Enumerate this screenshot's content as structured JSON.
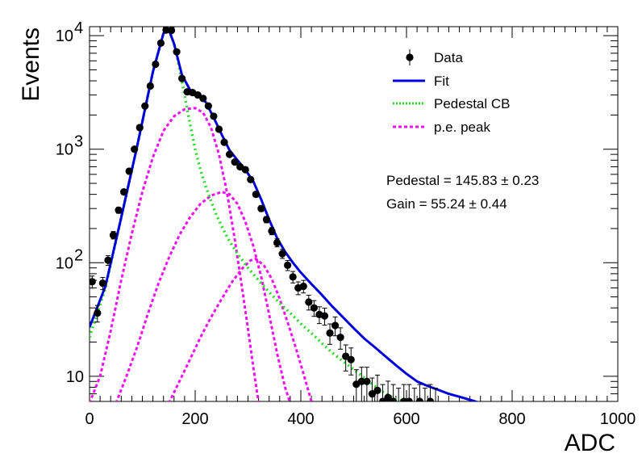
{
  "chart_data": {
    "type": "scatter",
    "xlabel": "ADC",
    "ylabel": "Events",
    "xlim": [
      0,
      1000
    ],
    "ylim": [
      6,
      12000
    ],
    "yscale": "log",
    "grid": false,
    "legend_position": "top-right",
    "x_ticks": [
      "0",
      "200",
      "400",
      "600",
      "800",
      "1000"
    ],
    "y_ticks": [
      {
        "value": 10,
        "label": "10"
      },
      {
        "value": 100,
        "base": "10",
        "exp": "2"
      },
      {
        "value": 1000,
        "base": "10",
        "exp": "3"
      },
      {
        "value": 10000,
        "base": "10",
        "exp": "4"
      }
    ],
    "legend": [
      {
        "label": "Data",
        "style": "marker"
      },
      {
        "label": "Fit",
        "style": "solid",
        "color": "#0000dd"
      },
      {
        "label": "Pedestal CB",
        "style": "dotted",
        "color": "#22dd22"
      },
      {
        "label": "p.e. peak",
        "style": "dashed",
        "color": "#ee11ee"
      }
    ],
    "annotations": [
      {
        "prefix": "Pedestal = 145.83",
        "pm": "±",
        "value": "0.23"
      },
      {
        "prefix": "Gain = 55.24",
        "pm": "±",
        "value": "0.44"
      }
    ],
    "data_series": {
      "name": "Data",
      "points": [
        [
          5,
          68
        ],
        [
          15,
          36
        ],
        [
          25,
          66
        ],
        [
          35,
          105
        ],
        [
          45,
          175
        ],
        [
          55,
          290
        ],
        [
          65,
          420
        ],
        [
          75,
          640
        ],
        [
          85,
          1000
        ],
        [
          95,
          1550
        ],
        [
          105,
          2400
        ],
        [
          115,
          3600
        ],
        [
          125,
          5600
        ],
        [
          135,
          8600
        ],
        [
          145,
          11200
        ],
        [
          155,
          11100
        ],
        [
          165,
          7200
        ],
        [
          175,
          4200
        ],
        [
          185,
          3200
        ],
        [
          195,
          3150
        ],
        [
          205,
          3000
        ],
        [
          215,
          2800
        ],
        [
          225,
          2400
        ],
        [
          235,
          1950
        ],
        [
          245,
          1500
        ],
        [
          255,
          1150
        ],
        [
          265,
          900
        ],
        [
          275,
          770
        ],
        [
          285,
          700
        ],
        [
          295,
          660
        ],
        [
          305,
          540
        ],
        [
          315,
          400
        ],
        [
          325,
          300
        ],
        [
          335,
          240
        ],
        [
          345,
          190
        ],
        [
          355,
          150
        ],
        [
          365,
          120
        ],
        [
          375,
          95
        ],
        [
          385,
          75
        ],
        [
          395,
          60
        ],
        [
          405,
          62
        ],
        [
          415,
          45
        ],
        [
          425,
          40
        ],
        [
          435,
          35
        ],
        [
          445,
          34
        ],
        [
          455,
          24
        ],
        [
          465,
          28
        ],
        [
          475,
          22
        ],
        [
          485,
          15
        ],
        [
          495,
          14
        ],
        [
          505,
          8.5
        ],
        [
          515,
          9
        ],
        [
          525,
          9
        ],
        [
          535,
          7
        ],
        [
          545,
          7.5
        ],
        [
          555,
          6
        ],
        [
          565,
          6.5
        ],
        [
          575,
          6
        ],
        [
          585,
          5.5
        ],
        [
          595,
          6
        ],
        [
          605,
          6
        ],
        [
          615,
          5.5
        ],
        [
          625,
          6
        ],
        [
          635,
          5.5
        ],
        [
          645,
          6
        ],
        [
          655,
          5.5
        ]
      ]
    },
    "fit_series": {
      "name": "Fit",
      "points": [
        [
          0,
          27
        ],
        [
          30,
          62
        ],
        [
          60,
          250
        ],
        [
          90,
          1050
        ],
        [
          120,
          4800
        ],
        [
          140,
          10500
        ],
        [
          150,
          11300
        ],
        [
          160,
          8500
        ],
        [
          175,
          4500
        ],
        [
          190,
          3350
        ],
        [
          205,
          3050
        ],
        [
          220,
          2600
        ],
        [
          235,
          1900
        ],
        [
          250,
          1350
        ],
        [
          265,
          980
        ],
        [
          280,
          800
        ],
        [
          295,
          660
        ],
        [
          310,
          520
        ],
        [
          325,
          360
        ],
        [
          340,
          240
        ],
        [
          355,
          165
        ],
        [
          370,
          125
        ],
        [
          385,
          100
        ],
        [
          400,
          82
        ],
        [
          420,
          65
        ],
        [
          440,
          52
        ],
        [
          460,
          41
        ],
        [
          480,
          33
        ],
        [
          500,
          26.5
        ],
        [
          520,
          21.5
        ],
        [
          540,
          18
        ],
        [
          560,
          15
        ],
        [
          580,
          12.5
        ],
        [
          600,
          10.5
        ],
        [
          620,
          9
        ],
        [
          640,
          8.2
        ],
        [
          660,
          7.6
        ],
        [
          680,
          7
        ],
        [
          700,
          6.6
        ],
        [
          720,
          6.2
        ],
        [
          740,
          5.8
        ],
        [
          750,
          5.6
        ]
      ]
    },
    "pedestal_series": {
      "name": "Pedestal CB",
      "points": [
        [
          0,
          22
        ],
        [
          30,
          60
        ],
        [
          60,
          250
        ],
        [
          90,
          1050
        ],
        [
          120,
          4800
        ],
        [
          140,
          10500
        ],
        [
          150,
          11200
        ],
        [
          160,
          8500
        ],
        [
          170,
          5200
        ],
        [
          180,
          3000
        ],
        [
          190,
          1700
        ],
        [
          200,
          1000
        ],
        [
          210,
          660
        ],
        [
          220,
          470
        ],
        [
          230,
          350
        ],
        [
          240,
          265
        ],
        [
          250,
          210
        ],
        [
          260,
          170
        ],
        [
          270,
          142
        ],
        [
          280,
          120
        ],
        [
          300,
          90
        ],
        [
          320,
          70
        ],
        [
          340,
          55
        ],
        [
          360,
          44
        ],
        [
          380,
          36
        ],
        [
          400,
          29
        ],
        [
          420,
          24
        ],
        [
          440,
          19.5
        ],
        [
          460,
          16
        ],
        [
          480,
          13.5
        ],
        [
          500,
          11.5
        ],
        [
          520,
          9.7
        ],
        [
          540,
          8.2
        ],
        [
          560,
          7
        ],
        [
          580,
          6.3
        ],
        [
          600,
          5.8
        ]
      ]
    },
    "pe_peaks": [
      {
        "name": "p.e. peak",
        "points": [
          [
            0,
            5.8
          ],
          [
            20,
            10
          ],
          [
            40,
            25
          ],
          [
            60,
            70
          ],
          [
            80,
            180
          ],
          [
            100,
            420
          ],
          [
            120,
            850
          ],
          [
            140,
            1450
          ],
          [
            160,
            1950
          ],
          [
            180,
            2250
          ],
          [
            200,
            2300
          ],
          [
            215,
            2100
          ],
          [
            230,
            1550
          ],
          [
            245,
            900
          ],
          [
            260,
            420
          ],
          [
            275,
            160
          ],
          [
            290,
            55
          ],
          [
            300,
            26
          ],
          [
            310,
            12
          ],
          [
            320,
            5.8
          ]
        ]
      },
      {
        "name": "p.e. peak",
        "points": [
          [
            50,
            5.8
          ],
          [
            70,
            10
          ],
          [
            90,
            18
          ],
          [
            110,
            35
          ],
          [
            130,
            65
          ],
          [
            150,
            110
          ],
          [
            170,
            175
          ],
          [
            190,
            250
          ],
          [
            210,
            330
          ],
          [
            230,
            390
          ],
          [
            250,
            420
          ],
          [
            265,
            400
          ],
          [
            280,
            330
          ],
          [
            295,
            230
          ],
          [
            310,
            140
          ],
          [
            325,
            75
          ],
          [
            340,
            35
          ],
          [
            355,
            16
          ],
          [
            370,
            8
          ],
          [
            380,
            5.8
          ]
        ]
      },
      {
        "name": "p.e. peak",
        "points": [
          [
            150,
            5.8
          ],
          [
            170,
            9
          ],
          [
            190,
            14
          ],
          [
            210,
            22
          ],
          [
            230,
            33
          ],
          [
            250,
            48
          ],
          [
            270,
            68
          ],
          [
            290,
            90
          ],
          [
            305,
            105
          ],
          [
            315,
            108
          ],
          [
            330,
            95
          ],
          [
            345,
            72
          ],
          [
            360,
            48
          ],
          [
            375,
            30
          ],
          [
            390,
            18
          ],
          [
            405,
            10.5
          ],
          [
            420,
            6
          ],
          [
            422,
            5.8
          ]
        ]
      }
    ]
  }
}
